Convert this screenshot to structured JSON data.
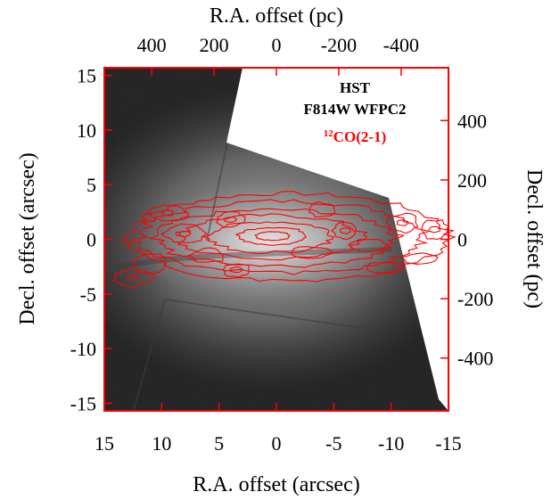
{
  "chart_data": {
    "type": "image-with-contours",
    "bottom_axis": {
      "label": "R.A. offset (arcsec)",
      "ticks": [
        15,
        10,
        5,
        0,
        -5,
        -10,
        -15
      ],
      "range": [
        15,
        -15
      ]
    },
    "left_axis": {
      "label": "Decl. offset (arcsec)",
      "ticks": [
        15,
        10,
        5,
        0,
        -5,
        -10,
        -15
      ],
      "range": [
        -15.7,
        15.7
      ]
    },
    "top_axis": {
      "label": "R.A. offset (pc)",
      "ticks": [
        400,
        200,
        0,
        -200,
        -400
      ],
      "range": [
        552,
        -552
      ],
      "color": "#000000"
    },
    "right_axis": {
      "label": "Decl. offset (pc)",
      "ticks": [
        400,
        200,
        0,
        -200,
        -400
      ],
      "range": [
        -578,
        578
      ],
      "color": "#ff0000"
    },
    "legend": {
      "line1": "HST",
      "line2": "F814W WFPC2",
      "contour_prefix": "12",
      "contour_label": "CO(2-1)",
      "placement": "top-right"
    },
    "frame_color": "#ff0000",
    "contour_color": "#ff0000",
    "background_image": "HST F814W WFPC2 greyscale galaxy image",
    "contour_levels_described": "nested contours of an edge-on disk elongated east-west, extending from about R.A. 13 to -15 arcsec, Decl. -4 to 4 arcsec"
  }
}
